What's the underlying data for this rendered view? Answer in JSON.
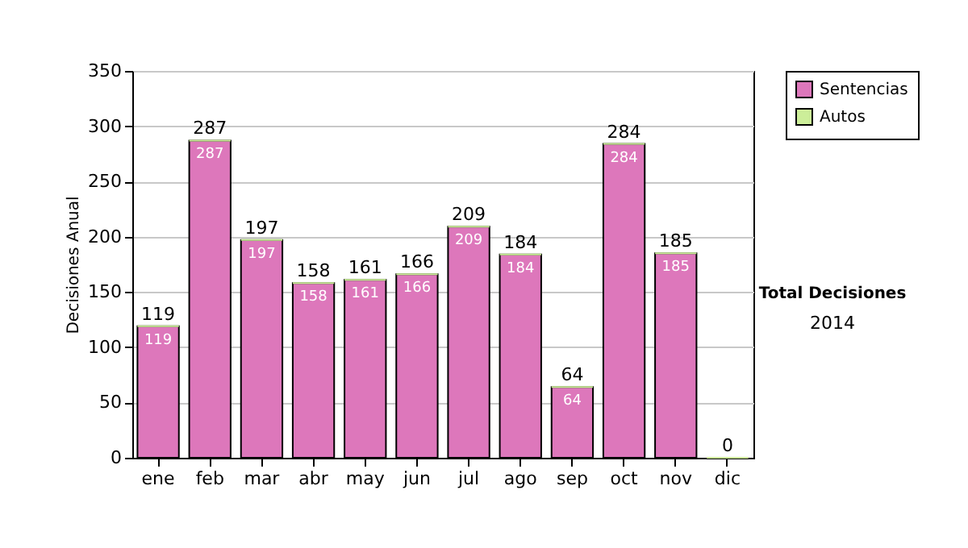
{
  "chart_data": {
    "type": "bar",
    "stacked": true,
    "title": "Total Decisiones",
    "subtitle": "2014",
    "ylabel": "Decisiones Anual",
    "categories": [
      "ene",
      "feb",
      "mar",
      "abr",
      "may",
      "jun",
      "jul",
      "ago",
      "sep",
      "oct",
      "nov",
      "dic"
    ],
    "series": [
      {
        "name": "Sentencias",
        "color": "#dd77bb",
        "values": [
          119,
          287,
          197,
          158,
          161,
          166,
          209,
          184,
          64,
          284,
          185,
          0
        ],
        "value_labels": [
          "119",
          "287",
          "197",
          "158",
          "161",
          "166",
          "209",
          "184",
          "64",
          "284",
          "185",
          null
        ]
      },
      {
        "name": "Autos",
        "color": "#ccee99",
        "values": [
          0,
          0,
          0,
          0,
          0,
          0,
          0,
          0,
          0,
          0,
          0,
          0
        ]
      }
    ],
    "totals": [
      "119",
      "287",
      "197",
      "158",
      "161",
      "166",
      "209",
      "184",
      "64",
      "284",
      "185",
      "0"
    ],
    "ylim": [
      0,
      350
    ],
    "yticks": [
      0,
      50,
      100,
      150,
      200,
      250,
      300,
      350
    ],
    "grid": "y",
    "legend": "right"
  }
}
